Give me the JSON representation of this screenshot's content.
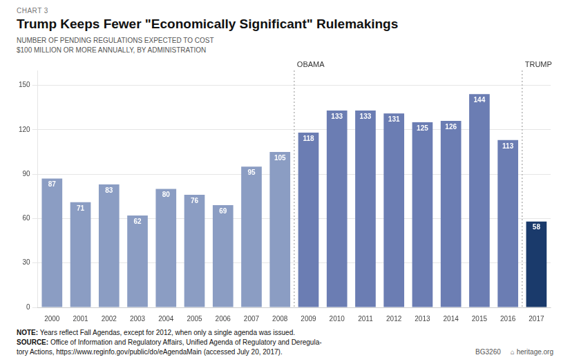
{
  "chart_data": {
    "type": "bar",
    "chart_label": "CHART 3",
    "title": "Trump Keeps Fewer \"Economically Significant\" Rulemakings",
    "subtitle": [
      "NUMBER OF PENDING REGULATIONS EXPECTED TO COST",
      "$100 MILLION OR MORE ANNUALLY, BY ADMINISTRATION"
    ],
    "categories": [
      "2000",
      "2001",
      "2002",
      "2003",
      "2004",
      "2005",
      "2006",
      "2007",
      "2008",
      "2009",
      "2010",
      "2011",
      "2012",
      "2013",
      "2014",
      "2015",
      "2016",
      "2017"
    ],
    "values": [
      87,
      71,
      83,
      62,
      80,
      76,
      69,
      95,
      105,
      118,
      133,
      133,
      131,
      125,
      126,
      144,
      113,
      58
    ],
    "colors": [
      "#8b9dc3",
      "#8b9dc3",
      "#8b9dc3",
      "#8b9dc3",
      "#8b9dc3",
      "#8b9dc3",
      "#8b9dc3",
      "#8b9dc3",
      "#8b9dc3",
      "#6b7db3",
      "#6b7db3",
      "#6b7db3",
      "#6b7db3",
      "#6b7db3",
      "#6b7db3",
      "#6b7db3",
      "#6b7db3",
      "#1a3a6b"
    ],
    "ylim": [
      0,
      160
    ],
    "yticks": [
      0,
      30,
      60,
      90,
      120,
      150
    ],
    "grid": true,
    "data_labels": true,
    "annotations": [
      {
        "text": "OBAMA",
        "category": "2009"
      },
      {
        "text": "TRUMP",
        "category": "2017"
      }
    ],
    "notes": [
      "NOTE: Years reflect Fall Agendas, except for 2012, when only a single agenda was issued.",
      "SOURCE: Office of Information and Regulatory Affairs, Unified Agenda of Regulatory and Deregula-\ntory Actions, https://www.reginfo.gov/public/do/eAgendaMain (accessed July 20, 2017)."
    ],
    "footer": [
      "BG3260",
      "⌂ heritage.org"
    ]
  }
}
